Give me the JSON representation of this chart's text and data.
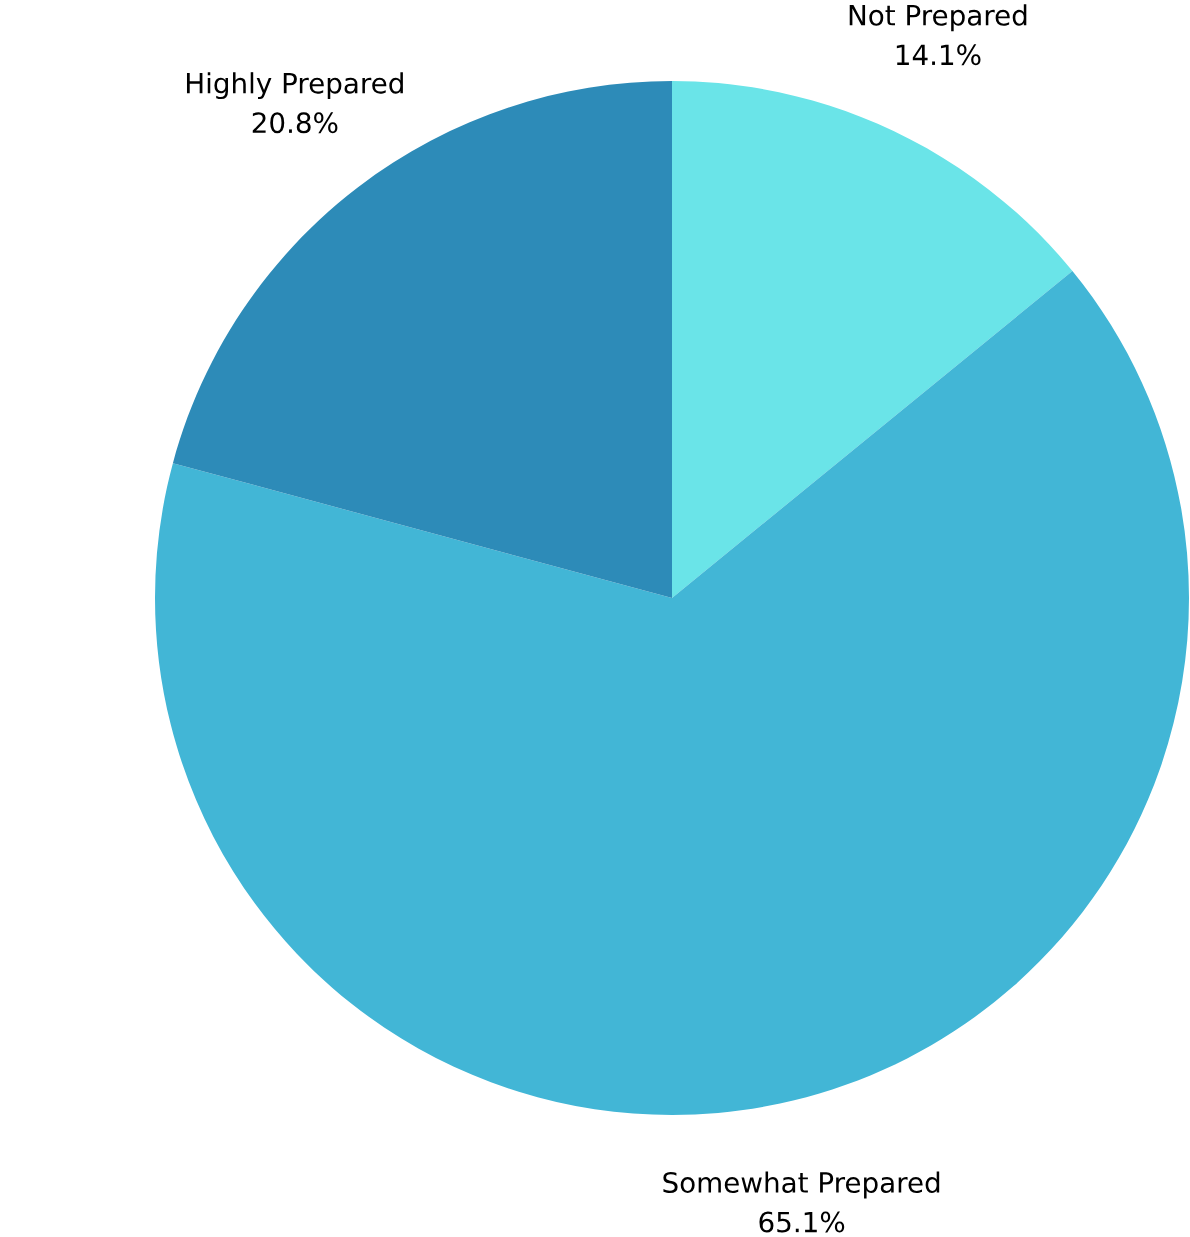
{
  "chart_data": {
    "type": "pie",
    "categories": [
      "Not Prepared",
      "Somewhat Prepared",
      "Highly Prepared"
    ],
    "values": [
      14.1,
      65.1,
      20.8
    ],
    "value_labels": [
      "14.1%",
      "65.1%",
      "20.8%"
    ],
    "colors": [
      "#6ae4e8",
      "#42b6d6",
      "#2d8bb8"
    ]
  }
}
